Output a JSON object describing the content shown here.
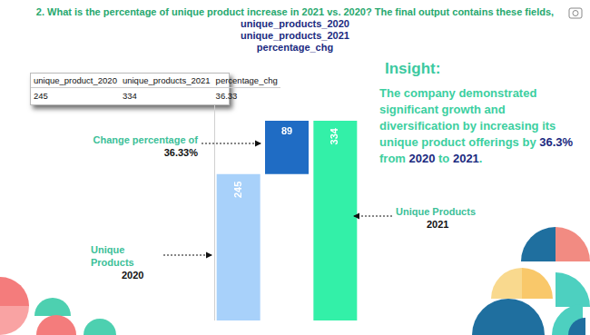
{
  "header": {
    "title": "2. What is the percentage of unique product increase in 2021 vs. 2020? The final output contains these fields,",
    "fields": [
      "unique_products_2020",
      "unique_products_2021",
      "percentage_chg"
    ]
  },
  "table": {
    "columns": [
      "unique_product_2020",
      "unique_products_2021",
      "percentage_chg"
    ],
    "rows": [
      [
        245,
        334,
        36.33
      ]
    ]
  },
  "insight": {
    "title": "Insight:",
    "parts": [
      "The company demonstrated significant growth and diversification by increasing its unique product offerings by ",
      "36.3%",
      " from ",
      "2020",
      " to ",
      "2021",
      "."
    ]
  },
  "chart_data": {
    "type": "waterfall",
    "categories": [
      null,
      null,
      null
    ],
    "values": [
      245,
      89,
      334
    ],
    "colors": [
      "#a8d1fa",
      "#1f6cc4",
      "#33f0a8"
    ],
    "ylim": [
      0,
      360
    ],
    "grid": false,
    "tick_labels": false,
    "data_labels": true,
    "annotations": [
      {
        "text": "Change percentage of",
        "emphasis": "36.33%"
      },
      {
        "text": "Unique Products",
        "emphasis": "2020"
      },
      {
        "text": "Unique Products",
        "emphasis": "2021"
      }
    ]
  }
}
